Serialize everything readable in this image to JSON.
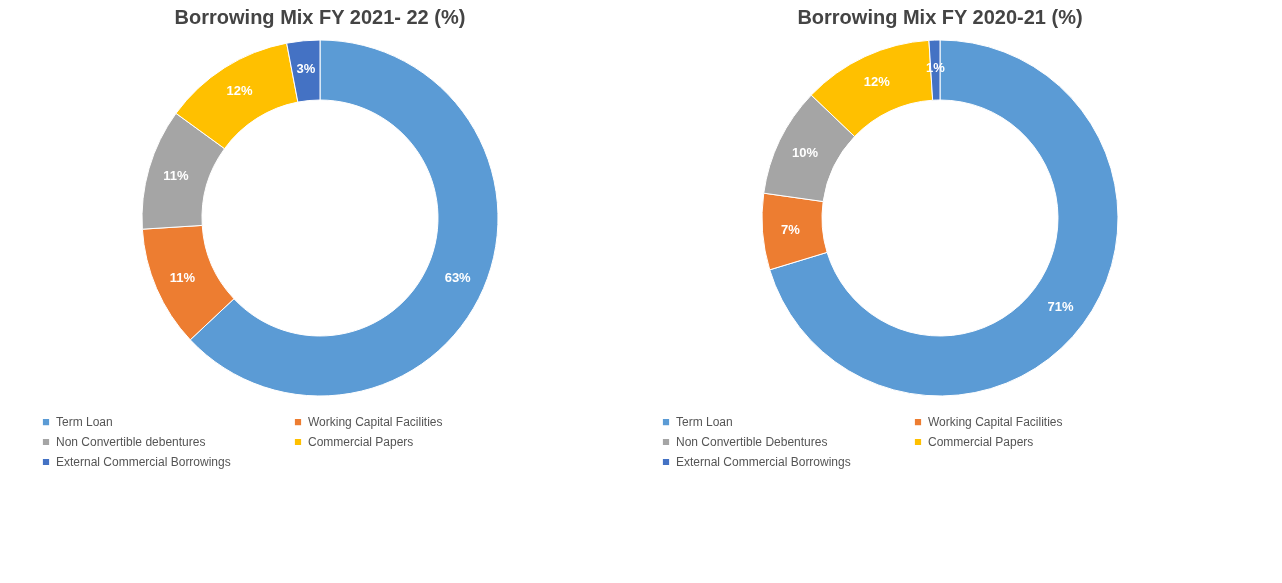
{
  "chart_data": [
    {
      "type": "donut",
      "title": "Borrowing Mix FY 2021- 22 (%)",
      "categories": [
        "Term Loan",
        "Working Capital Facilities",
        "Non Convertible debentures",
        "Commercial Papers",
        "External Commercial Borrowings"
      ],
      "values": [
        63,
        11,
        11,
        12,
        3
      ],
      "colors": [
        "#5b9bd5",
        "#ed7d31",
        "#a5a5a5",
        "#ffc000",
        "#4472c4"
      ],
      "value_labels": [
        "63%",
        "11%",
        "11%",
        "12%",
        "3%"
      ],
      "legend": "bottom"
    },
    {
      "type": "donut",
      "title": "Borrowing Mix FY 2020-21 (%)",
      "categories": [
        "Term Loan",
        "Working Capital Facilities",
        "Non Convertible Debentures",
        "Commercial Papers",
        "External Commercial Borrowings"
      ],
      "values": [
        71,
        7,
        10,
        12,
        1
      ],
      "colors": [
        "#5b9bd5",
        "#ed7d31",
        "#a5a5a5",
        "#ffc000",
        "#4472c4"
      ],
      "value_labels": [
        "71%",
        "7%",
        "10%",
        "12%",
        "1%"
      ],
      "legend": "bottom"
    }
  ]
}
